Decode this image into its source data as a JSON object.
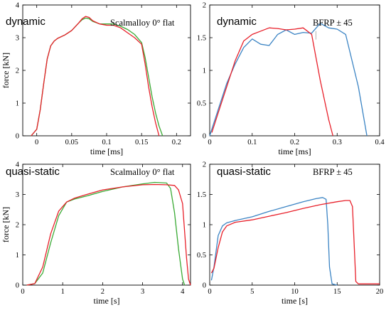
{
  "colors": {
    "red": "#e8202a",
    "green": "#3aaa35",
    "blue": "#3b84c4"
  },
  "chart_data": [
    {
      "type": "line",
      "label": "dynamic",
      "material": "Scalmalloy 0° flat",
      "xlabel": "time [ms]",
      "ylabel": "force [kN]",
      "xlim": [
        -0.02,
        0.22
      ],
      "ylim": [
        0,
        4
      ],
      "xticks": [
        0,
        0.05,
        0.1,
        0.15,
        0.2
      ],
      "xtick_labels": [
        "0",
        "0.05",
        "0.1",
        "0.15",
        "0.2"
      ],
      "yticks": [
        0,
        1,
        2,
        3,
        4
      ],
      "ytick_labels": [
        "0",
        "1",
        "2",
        "3",
        "4"
      ],
      "series": [
        {
          "color": "green",
          "x": [
            -0.008,
            0.0,
            0.005,
            0.01,
            0.015,
            0.02,
            0.025,
            0.03,
            0.04,
            0.05,
            0.06,
            0.065,
            0.07,
            0.075,
            0.08,
            0.09,
            0.1,
            0.11,
            0.12,
            0.13,
            0.14,
            0.15,
            0.155,
            0.16,
            0.165,
            0.17,
            0.175,
            0.18
          ],
          "y": [
            0,
            0.2,
            0.8,
            1.6,
            2.35,
            2.75,
            2.9,
            2.98,
            3.08,
            3.22,
            3.45,
            3.55,
            3.6,
            3.58,
            3.5,
            3.42,
            3.42,
            3.42,
            3.35,
            3.25,
            3.1,
            2.85,
            2.4,
            1.8,
            1.2,
            0.7,
            0.3,
            0
          ]
        },
        {
          "color": "red",
          "x": [
            -0.008,
            0.0,
            0.005,
            0.01,
            0.015,
            0.02,
            0.025,
            0.03,
            0.04,
            0.05,
            0.06,
            0.065,
            0.07,
            0.075,
            0.08,
            0.09,
            0.1,
            0.11,
            0.12,
            0.13,
            0.14,
            0.15,
            0.155,
            0.16,
            0.165,
            0.17,
            0.175
          ],
          "y": [
            0,
            0.2,
            0.8,
            1.6,
            2.35,
            2.75,
            2.9,
            2.98,
            3.08,
            3.22,
            3.45,
            3.58,
            3.65,
            3.62,
            3.52,
            3.42,
            3.38,
            3.38,
            3.3,
            3.15,
            3.0,
            2.8,
            2.2,
            1.5,
            0.9,
            0.4,
            0
          ]
        }
      ]
    },
    {
      "type": "line",
      "label": "dynamic",
      "material": "BFRP ± 45",
      "xlabel": "time [ms]",
      "ylabel": "",
      "xlim": [
        0,
        0.4
      ],
      "ylim": [
        0,
        2
      ],
      "xticks": [
        0,
        0.1,
        0.2,
        0.3,
        0.4
      ],
      "xtick_labels": [
        "0",
        "0.1",
        "0.2",
        "0.3",
        "0.4"
      ],
      "yticks": [
        0,
        0.5,
        1,
        1.5,
        2
      ],
      "ytick_labels": [
        "0",
        "0.5",
        "1",
        "1.5",
        "2"
      ],
      "series": [
        {
          "color": "blue",
          "x": [
            0.0,
            0.02,
            0.04,
            0.06,
            0.08,
            0.1,
            0.12,
            0.14,
            0.16,
            0.18,
            0.2,
            0.22,
            0.24,
            0.26,
            0.28,
            0.3,
            0.32,
            0.35,
            0.37
          ],
          "y": [
            0,
            0.4,
            0.8,
            1.1,
            1.35,
            1.48,
            1.4,
            1.38,
            1.55,
            1.62,
            1.55,
            1.58,
            1.57,
            1.72,
            1.65,
            1.63,
            1.55,
            0.75,
            0
          ],
          "marker_x": [
            0.25
          ],
          "marker_y": [
            1.58
          ]
        },
        {
          "color": "red",
          "x": [
            0.005,
            0.02,
            0.04,
            0.06,
            0.08,
            0.1,
            0.12,
            0.14,
            0.16,
            0.18,
            0.2,
            0.22,
            0.24,
            0.26,
            0.28,
            0.29
          ],
          "y": [
            0.05,
            0.35,
            0.75,
            1.15,
            1.45,
            1.55,
            1.6,
            1.65,
            1.64,
            1.62,
            1.63,
            1.65,
            1.55,
            0.85,
            0.25,
            0
          ]
        }
      ]
    },
    {
      "type": "line",
      "label": "quasi-static",
      "material": "Scalmalloy 0° flat",
      "xlabel": "time [s]",
      "ylabel": "force [kN]",
      "xlim": [
        0,
        4.2
      ],
      "ylim": [
        0,
        4
      ],
      "xticks": [
        0,
        1,
        2,
        3,
        4
      ],
      "xtick_labels": [
        "0",
        "1",
        "2",
        "3",
        "4"
      ],
      "yticks": [
        0,
        1,
        2,
        3,
        4
      ],
      "ytick_labels": [
        "0",
        "1",
        "2",
        "3",
        "4"
      ],
      "series": [
        {
          "color": "green",
          "x": [
            0.1,
            0.3,
            0.5,
            0.7,
            0.9,
            1.1,
            1.3,
            1.6,
            2.0,
            2.5,
            3.0,
            3.3,
            3.6,
            3.7,
            3.8,
            3.9,
            4.0,
            4.05
          ],
          "y": [
            0,
            0.05,
            0.4,
            1.4,
            2.3,
            2.75,
            2.85,
            2.95,
            3.1,
            3.25,
            3.35,
            3.4,
            3.38,
            3.2,
            2.4,
            1.2,
            0.2,
            0
          ]
        },
        {
          "color": "red",
          "x": [
            0.1,
            0.3,
            0.5,
            0.7,
            0.9,
            1.1,
            1.3,
            1.6,
            2.0,
            2.5,
            3.0,
            3.3,
            3.6,
            3.8,
            3.9,
            4.0,
            4.05,
            4.1,
            4.15,
            4.2
          ],
          "y": [
            0,
            0.05,
            0.6,
            1.7,
            2.45,
            2.75,
            2.88,
            3.0,
            3.15,
            3.25,
            3.32,
            3.33,
            3.32,
            3.3,
            3.15,
            2.7,
            1.8,
            0.9,
            0.2,
            0
          ]
        }
      ]
    },
    {
      "type": "line",
      "label": "quasi-static",
      "material": "BFRP ± 45",
      "xlabel": "time [s]",
      "ylabel": "",
      "xlim": [
        0,
        20
      ],
      "ylim": [
        0,
        2
      ],
      "xticks": [
        0,
        5,
        10,
        15,
        20
      ],
      "xtick_labels": [
        "0",
        "5",
        "10",
        "15",
        "20"
      ],
      "yticks": [
        0,
        0.5,
        1,
        1.5,
        2
      ],
      "ytick_labels": [
        "0",
        "0.5",
        "1",
        "1.5",
        "2"
      ],
      "series": [
        {
          "color": "blue",
          "x": [
            0.2,
            0.5,
            1.0,
            1.5,
            2.0,
            3.0,
            5.0,
            7.0,
            9.0,
            11.0,
            12.5,
            13.3,
            13.7,
            13.9,
            14.1,
            14.4,
            15.0
          ],
          "y": [
            0.08,
            0.3,
            0.82,
            0.98,
            1.03,
            1.07,
            1.13,
            1.22,
            1.3,
            1.38,
            1.43,
            1.45,
            1.42,
            1.0,
            0.3,
            0.02,
            0
          ]
        },
        {
          "color": "red",
          "x": [
            0.2,
            0.5,
            1.0,
            1.5,
            2.0,
            3.0,
            5.0,
            7.0,
            9.0,
            11.0,
            13.0,
            15.0,
            16.0,
            16.5,
            16.8,
            17.0,
            17.2,
            17.5,
            20.0
          ],
          "y": [
            0.2,
            0.28,
            0.62,
            0.88,
            0.98,
            1.04,
            1.08,
            1.14,
            1.2,
            1.27,
            1.33,
            1.38,
            1.4,
            1.4,
            1.3,
            0.7,
            0.06,
            0.02,
            0.02
          ]
        }
      ]
    }
  ]
}
